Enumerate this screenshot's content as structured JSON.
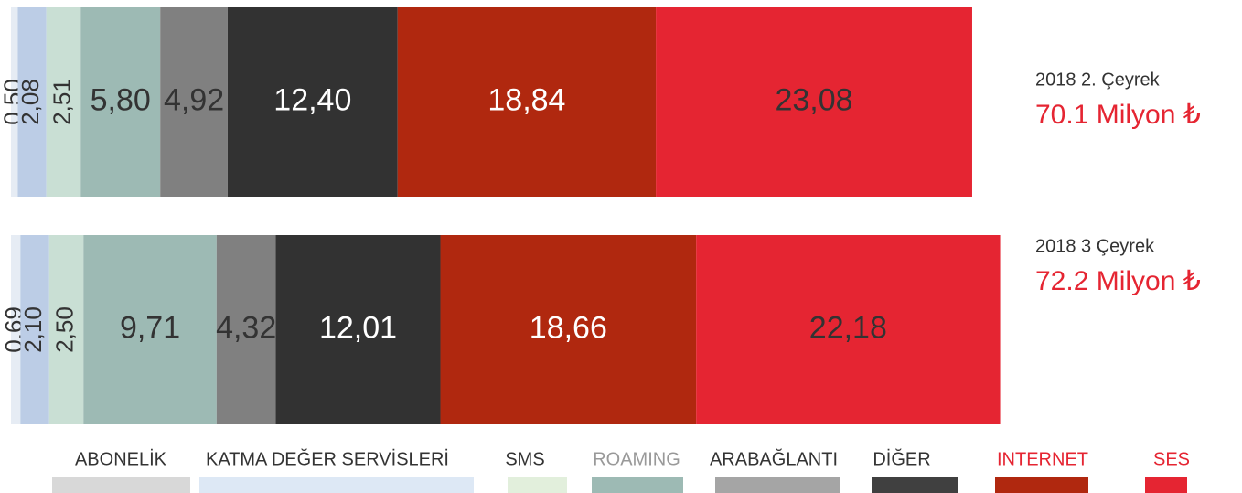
{
  "chart_data": {
    "type": "stacked-bar",
    "orientation": "horizontal",
    "categories": [
      "2018 2. Çeyrek",
      "2018 3 Çeyrek"
    ],
    "totals": [
      70.1,
      72.2
    ],
    "total_labels": [
      "70.1 Milyon ₺",
      "72.2 Milyon ₺"
    ],
    "xlim": [
      0,
      72.2
    ],
    "series": [
      {
        "name": "ABONELİK",
        "color": "#e6ecf4",
        "legend_color": "#d8d8d8",
        "label_color": "#333333",
        "values": [
          0.5,
          0.69
        ],
        "value_labels": [
          "0,50",
          "0,69"
        ]
      },
      {
        "name": "KATMA DEĞER SERVİSLERİ",
        "color": "#bccde6",
        "legend_color": "#dde8f5",
        "label_color": "#333333",
        "values": [
          2.08,
          2.1
        ],
        "value_labels": [
          "2,08",
          "2,10"
        ]
      },
      {
        "name": "SMS",
        "color": "#c9dfd4",
        "legend_color": "#e2efdc",
        "label_color": "#333333",
        "values": [
          2.51,
          2.5
        ],
        "value_labels": [
          "2,51",
          "2,50"
        ]
      },
      {
        "name": "ROAMING",
        "color": "#9dbab4",
        "legend_color": "#9dbab4",
        "label_color": "#999999",
        "values": [
          5.8,
          9.71
        ],
        "value_labels": [
          "5,80",
          "9,71"
        ]
      },
      {
        "name": "ARABAĞLANTI",
        "color": "#808080",
        "legend_color": "#a5a5a5",
        "label_color": "#333333",
        "values": [
          4.92,
          4.32
        ],
        "value_labels": [
          "4,92",
          "4,32"
        ]
      },
      {
        "name": "DİĞER",
        "color": "#323232",
        "legend_color": "#404040",
        "label_color": "#333333",
        "values": [
          12.4,
          12.01
        ],
        "value_labels": [
          "12,40",
          "12,01"
        ]
      },
      {
        "name": "INTERNET",
        "color": "#b0280f",
        "legend_color": "#b0280f",
        "label_color": "#e52532",
        "values": [
          18.84,
          18.66
        ],
        "value_labels": [
          "18,84",
          "18,66"
        ]
      },
      {
        "name": "SES",
        "color": "#e52532",
        "legend_color": "#e52532",
        "label_color": "#e52532",
        "values": [
          23.08,
          22.18
        ],
        "value_labels": [
          "23,08",
          "22,18"
        ]
      }
    ]
  }
}
